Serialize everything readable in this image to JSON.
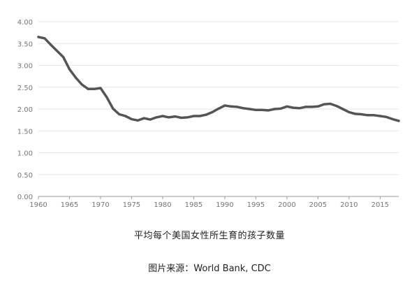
{
  "chart_data": {
    "type": "line",
    "title": "",
    "xlabel": "",
    "ylabel": "",
    "xlim": [
      1960,
      2018
    ],
    "ylim": [
      0,
      4
    ],
    "grid": true,
    "y_ticks": [
      "0.00",
      "0.50",
      "1.00",
      "1.50",
      "2.00",
      "2.50",
      "3.00",
      "3.50",
      "4.00"
    ],
    "x_ticks": [
      "1960",
      "1965",
      "1970",
      "1975",
      "1980",
      "1985",
      "1990",
      "1995",
      "2000",
      "2005",
      "2010",
      "2015"
    ],
    "series": [
      {
        "color": "#555555",
        "x": [
          1960,
          1961,
          1962,
          1963,
          1964,
          1965,
          1966,
          1967,
          1968,
          1969,
          1970,
          1971,
          1972,
          1973,
          1974,
          1975,
          1976,
          1977,
          1978,
          1979,
          1980,
          1981,
          1982,
          1983,
          1984,
          1985,
          1986,
          1987,
          1988,
          1989,
          1990,
          1991,
          1992,
          1993,
          1994,
          1995,
          1996,
          1997,
          1998,
          1999,
          2000,
          2001,
          2002,
          2003,
          2004,
          2005,
          2006,
          2007,
          2008,
          2009,
          2010,
          2011,
          2012,
          2013,
          2014,
          2015,
          2016,
          2017,
          2018
        ],
        "values": [
          3.65,
          3.62,
          3.47,
          3.33,
          3.19,
          2.91,
          2.72,
          2.56,
          2.46,
          2.46,
          2.48,
          2.27,
          2.01,
          1.88,
          1.84,
          1.77,
          1.74,
          1.79,
          1.76,
          1.81,
          1.84,
          1.81,
          1.83,
          1.8,
          1.81,
          1.84,
          1.84,
          1.87,
          1.93,
          2.01,
          2.08,
          2.06,
          2.05,
          2.02,
          2.0,
          1.98,
          1.98,
          1.97,
          2.0,
          2.01,
          2.06,
          2.03,
          2.02,
          2.05,
          2.05,
          2.06,
          2.11,
          2.12,
          2.07,
          2.0,
          1.93,
          1.89,
          1.88,
          1.86,
          1.86,
          1.84,
          1.82,
          1.77,
          1.73
        ]
      }
    ]
  },
  "captions": {
    "title": "平均每个美国女性所生育的孩子数量",
    "source": "图片来源：World Bank, CDC"
  },
  "colors": {
    "line": "#555555",
    "grid": "#e6e6e6",
    "axis": "#9a9a9a",
    "tick_label": "#777777",
    "caption": "#222222",
    "background": "#ffffff"
  }
}
